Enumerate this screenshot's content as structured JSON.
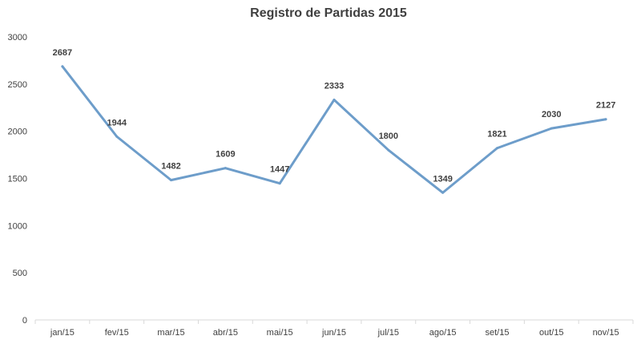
{
  "chart_data": {
    "type": "line",
    "title": "Registro de Partidas 2015",
    "categories": [
      "jan/15",
      "fev/15",
      "mar/15",
      "abr/15",
      "mai/15",
      "jun/15",
      "jul/15",
      "ago/15",
      "set/15",
      "out/15",
      "nov/15"
    ],
    "series": [
      {
        "values": [
          2687,
          1944,
          1482,
          1609,
          1447,
          2333,
          1800,
          1349,
          1821,
          2030,
          2127
        ]
      }
    ],
    "y_ticks": [
      0,
      500,
      1000,
      1500,
      2000,
      2500,
      3000
    ],
    "ylim": [
      0,
      3000
    ],
    "xlabel": "",
    "ylabel": "",
    "grid": false,
    "legend": "none",
    "data_labels": true,
    "colors": {
      "line": "#6d9dca",
      "text": "#404040",
      "axis": "#d9d9d9"
    }
  }
}
